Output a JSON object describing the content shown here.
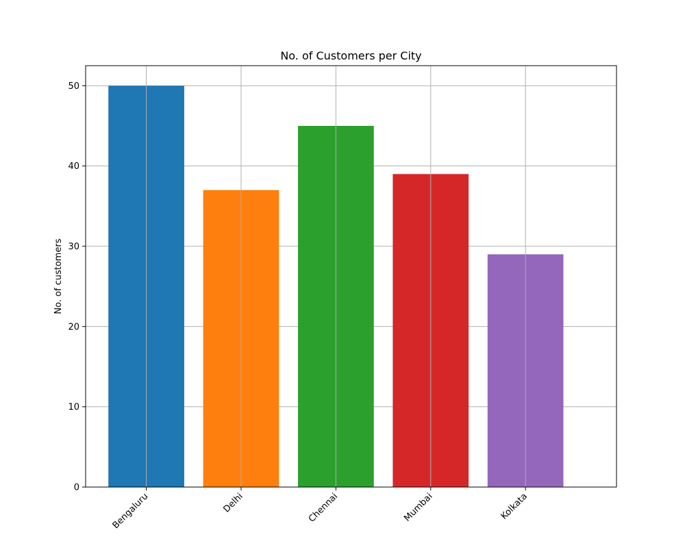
{
  "chart_data": {
    "type": "bar",
    "title": "No. of Customers per City",
    "xlabel": "",
    "ylabel": "No. of customers",
    "categories": [
      "Bengaluru",
      "Delhi",
      "Chennai",
      "Mumbai",
      "Kolkata"
    ],
    "values": [
      50,
      37,
      45,
      39,
      29
    ],
    "colors": [
      "#1f77b4",
      "#ff7f0e",
      "#2ca02c",
      "#d62728",
      "#9467bd"
    ],
    "ylim": [
      0,
      52.5
    ],
    "yticks": [
      0,
      10,
      20,
      30,
      40,
      50
    ],
    "grid": true,
    "x_tick_rotation_deg": 45
  }
}
